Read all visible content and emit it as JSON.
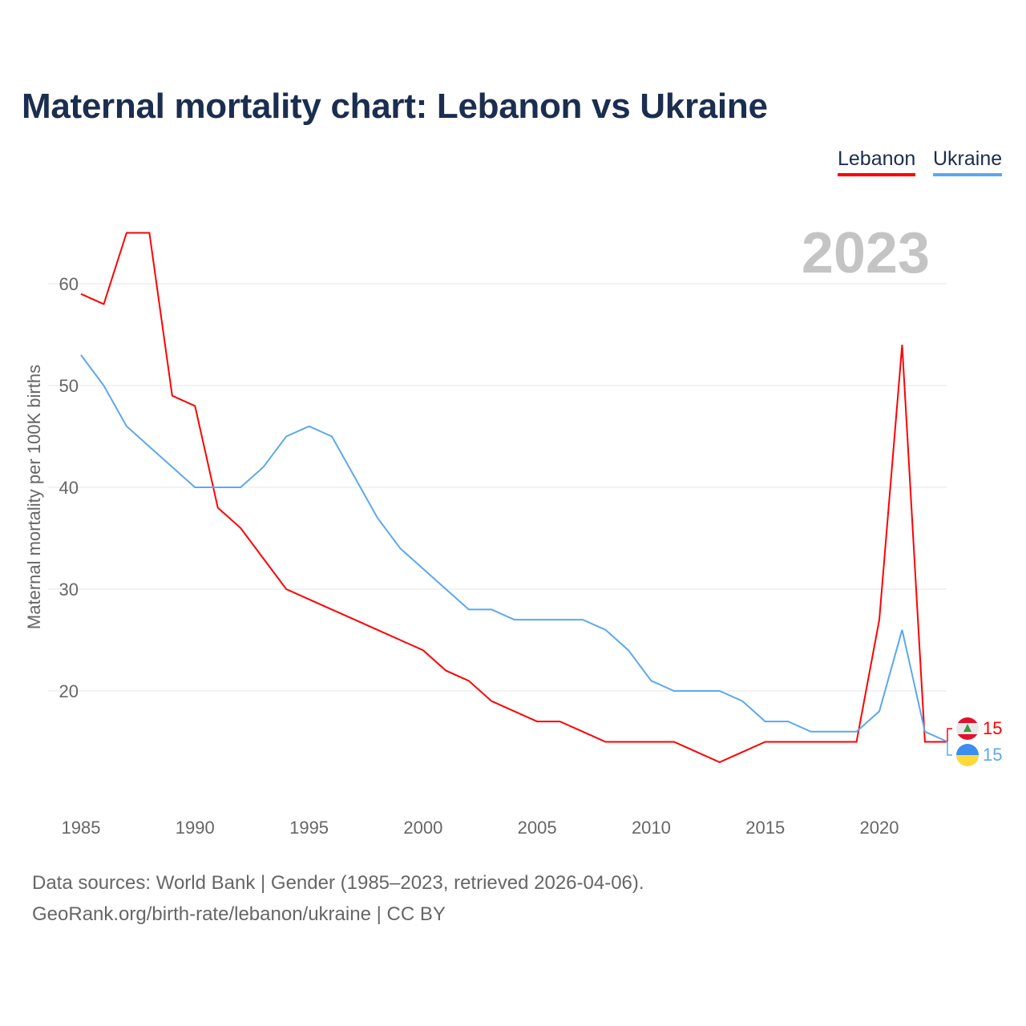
{
  "chart_data": {
    "type": "line",
    "title": "Maternal mortality chart: Lebanon vs Ukraine",
    "xlabel": "",
    "ylabel": "Maternal mortality per 100K births",
    "year_label": "2023",
    "xlim": [
      1985,
      2023
    ],
    "ylim": [
      10,
      65
    ],
    "x_ticks": [
      1985,
      1990,
      1995,
      2000,
      2005,
      2010,
      2015,
      2020
    ],
    "y_ticks": [
      20,
      30,
      40,
      50,
      60
    ],
    "grid": true,
    "legend_placement": "top-right",
    "x": [
      1985,
      1986,
      1987,
      1988,
      1989,
      1990,
      1991,
      1992,
      1993,
      1994,
      1995,
      1996,
      1997,
      1998,
      1999,
      2000,
      2001,
      2002,
      2003,
      2004,
      2005,
      2006,
      2007,
      2008,
      2009,
      2010,
      2011,
      2012,
      2013,
      2014,
      2015,
      2016,
      2017,
      2018,
      2019,
      2020,
      2021,
      2022,
      2023
    ],
    "series": [
      {
        "name": "Lebanon",
        "color": "#ff0000",
        "end_label": "15",
        "values": [
          59,
          58,
          65,
          65,
          49,
          48,
          38,
          36,
          33,
          30,
          29,
          28,
          27,
          26,
          25,
          24,
          22,
          21,
          19,
          18,
          17,
          17,
          16,
          15,
          15,
          15,
          15,
          14,
          13,
          14,
          15,
          15,
          15,
          15,
          15,
          27,
          54,
          15,
          15
        ]
      },
      {
        "name": "Ukraine",
        "color": "#5ba8f0",
        "end_label": "15",
        "values": [
          53,
          50,
          46,
          44,
          42,
          40,
          40,
          40,
          42,
          45,
          46,
          45,
          41,
          37,
          34,
          32,
          30,
          28,
          28,
          27,
          27,
          27,
          27,
          26,
          24,
          21,
          20,
          20,
          20,
          19,
          17,
          17,
          16,
          16,
          16,
          18,
          26,
          16,
          15
        ]
      }
    ]
  },
  "footer": {
    "source_line": "Data sources: World Bank | Gender (1985–2023, retrieved 2026-04-06).",
    "credit_line": "GeoRank.org/birth-rate/lebanon/ukraine | CC BY"
  }
}
